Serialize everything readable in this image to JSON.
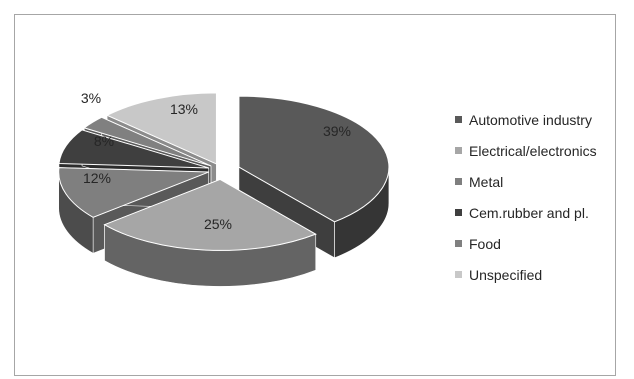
{
  "chart_data": {
    "type": "pie",
    "categories": [
      "Automotive industry",
      "Electrical/electronics",
      "Metal",
      "Cem.rubber and pl.",
      "Food",
      "Unspecified"
    ],
    "values": [
      39,
      25,
      12,
      8,
      3,
      13
    ],
    "labels": [
      "39%",
      "25%",
      "12%",
      "8%",
      "3%",
      "13%"
    ],
    "colors": [
      "#595959",
      "#a6a6a6",
      "#7f7f7f",
      "#3f3f3f",
      "#808080",
      "#c8c8c8"
    ],
    "exploded": true,
    "three_d": true,
    "legend_position": "right"
  }
}
